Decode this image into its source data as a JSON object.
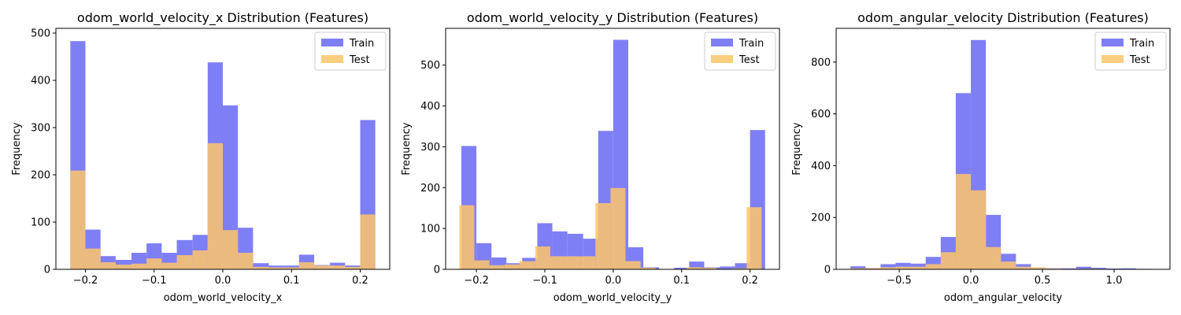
{
  "colors": {
    "train": "#7f7ff5",
    "test": "#fdc46a",
    "overlap": "#b78e86"
  },
  "chart_data": [
    {
      "type": "bar",
      "title": "odom_world_velocity_x Distribution (Features)",
      "xlabel": "odom_world_velocity_x",
      "ylabel": "Frequency",
      "xlim": [
        -0.243,
        0.243
      ],
      "ylim": [
        0,
        510
      ],
      "xticks": [
        -0.2,
        -0.1,
        0.0,
        0.1,
        0.2
      ],
      "xtick_labels": [
        "−0.2",
        "−0.1",
        "0.0",
        "0.1",
        "0.2"
      ],
      "yticks": [
        0,
        100,
        200,
        300,
        400,
        500
      ],
      "legend": "top-right",
      "series": [
        {
          "name": "Train",
          "edges": [
            -0.222,
            -0.2,
            -0.178,
            -0.156,
            -0.133,
            -0.111,
            -0.089,
            -0.067,
            -0.044,
            -0.022,
            0.0,
            0.022,
            0.044,
            0.067,
            0.089,
            0.111,
            0.133,
            0.156,
            0.178,
            0.2,
            0.222
          ],
          "values": [
            483,
            84,
            28,
            20,
            35,
            55,
            35,
            62,
            73,
            438,
            347,
            88,
            13,
            8,
            8,
            31,
            9,
            14,
            8,
            316
          ]
        },
        {
          "name": "Test",
          "edges": [
            -0.222,
            -0.2,
            -0.178,
            -0.156,
            -0.133,
            -0.111,
            -0.089,
            -0.067,
            -0.044,
            -0.022,
            0.0,
            0.022,
            0.044,
            0.067,
            0.089,
            0.111,
            0.133,
            0.156,
            0.178,
            0.2,
            0.222
          ],
          "values": [
            209,
            44,
            15,
            10,
            12,
            23,
            14,
            30,
            40,
            267,
            83,
            35,
            5,
            4,
            4,
            15,
            8,
            8,
            5,
            116
          ]
        }
      ]
    },
    {
      "type": "bar",
      "title": "odom_world_velocity_y Distribution (Features)",
      "xlabel": "odom_world_velocity_y",
      "ylabel": "Frequency",
      "xlim": [
        -0.245,
        0.243
      ],
      "ylim": [
        0,
        590
      ],
      "xticks": [
        -0.2,
        -0.1,
        0.0,
        0.1,
        0.2
      ],
      "xtick_labels": [
        "−0.2",
        "−0.1",
        "0.0",
        "0.1",
        "0.2"
      ],
      "yticks": [
        0,
        100,
        200,
        300,
        400,
        500
      ],
      "legend": "top-right",
      "series": [
        {
          "name": "Train",
          "edges": [
            -0.222,
            -0.2,
            -0.178,
            -0.156,
            -0.133,
            -0.111,
            -0.089,
            -0.067,
            -0.044,
            -0.022,
            0.0,
            0.022,
            0.044,
            0.067,
            0.089,
            0.111,
            0.133,
            0.156,
            0.178,
            0.2,
            0.222
          ],
          "values": [
            302,
            64,
            29,
            15,
            28,
            113,
            93,
            87,
            75,
            339,
            562,
            54,
            5,
            1,
            4,
            19,
            5,
            7,
            15,
            341
          ]
        },
        {
          "name": "Test",
          "edges": [
            -0.225,
            -0.203,
            -0.181,
            -0.159,
            -0.137,
            -0.114,
            -0.092,
            -0.07,
            -0.048,
            -0.026,
            -0.004,
            0.018,
            0.04,
            0.062,
            0.084,
            0.107,
            0.129,
            0.151,
            0.173,
            0.195,
            0.217
          ],
          "values": [
            157,
            22,
            10,
            12,
            20,
            56,
            32,
            32,
            32,
            162,
            199,
            20,
            4,
            0,
            0,
            5,
            4,
            1,
            2,
            152
          ]
        }
      ]
    },
    {
      "type": "bar",
      "title": "odom_angular_velocity Distribution (Features)",
      "xlabel": "odom_angular_velocity",
      "ylabel": "Frequency",
      "xlim": [
        -0.94,
        1.39
      ],
      "ylim": [
        0,
        930
      ],
      "xticks": [
        -0.5,
        0.0,
        0.5,
        1.0
      ],
      "xtick_labels": [
        "−0.5",
        "0.0",
        "0.5",
        "1.0"
      ],
      "yticks": [
        0,
        200,
        400,
        600,
        800
      ],
      "legend": "top-right",
      "series": [
        {
          "name": "Train",
          "edges": [
            -0.84,
            -0.735,
            -0.63,
            -0.525,
            -0.42,
            -0.315,
            -0.21,
            -0.105,
            0.0,
            0.105,
            0.21,
            0.315,
            0.42,
            0.525,
            0.63,
            0.735,
            0.84,
            0.945,
            1.05,
            1.155,
            1.26
          ],
          "values": [
            12,
            5,
            20,
            25,
            22,
            48,
            125,
            680,
            885,
            210,
            60,
            20,
            6,
            4,
            4,
            10,
            6,
            3,
            4,
            2
          ]
        },
        {
          "name": "Test",
          "edges": [
            -0.84,
            -0.735,
            -0.63,
            -0.525,
            -0.42,
            -0.315,
            -0.21,
            -0.105,
            0.0,
            0.105,
            0.21,
            0.315,
            0.42,
            0.525,
            0.63,
            0.735,
            0.84,
            0.945,
            1.05,
            1.155,
            1.26
          ],
          "values": [
            4,
            5,
            8,
            10,
            10,
            20,
            66,
            368,
            305,
            86,
            30,
            10,
            8,
            3,
            2,
            2,
            2,
            1,
            1,
            1
          ]
        }
      ]
    }
  ]
}
